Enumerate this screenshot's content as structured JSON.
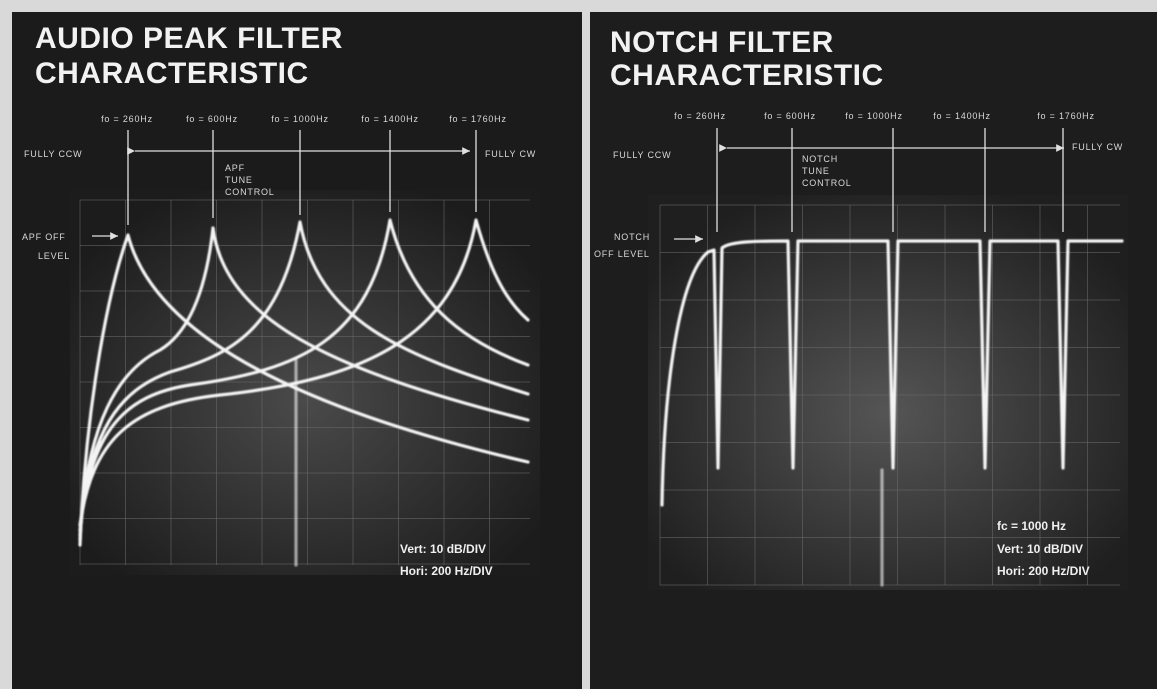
{
  "left_panel": {
    "title": [
      "AUDIO PEAK FILTER",
      "CHARACTERISTIC"
    ],
    "markers": [
      "fo = 260Hz",
      "fo = 600Hz",
      "fo = 1000Hz",
      "fo = 1400Hz",
      "fo = 1760Hz"
    ],
    "fully_ccw": "FULLY CCW",
    "fully_cw": "FULLY CW",
    "control_label": [
      "APF",
      "TUNE",
      "CONTROL"
    ],
    "off_level": [
      "APF OFF",
      "LEVEL"
    ],
    "scale": [
      "Vert:  10 dB/DIV",
      "Hori:  200 Hz/DIV"
    ]
  },
  "right_panel": {
    "title": [
      "NOTCH FILTER",
      "CHARACTERISTIC"
    ],
    "markers": [
      "fo = 260Hz",
      "fo = 600Hz",
      "fo = 1000Hz",
      "fo = 1400Hz",
      "fo = 1760Hz"
    ],
    "fully_ccw": "FULLY CCW",
    "fully_cw": "FULLY CW",
    "control_label": [
      "NOTCH",
      "TUNE",
      "CONTROL"
    ],
    "off_level": [
      "NOTCH",
      "OFF LEVEL"
    ],
    "center": "fc = 1000 Hz",
    "scale": [
      "Vert:  10 dB/DIV",
      "Hori:  200 Hz/DIV"
    ]
  }
}
